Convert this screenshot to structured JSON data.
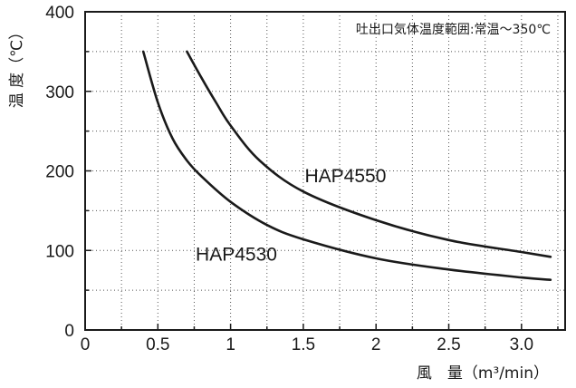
{
  "chart_data": {
    "type": "line",
    "title": "",
    "annotation": "吐出口気体温度範囲:常温～350℃",
    "xlabel": "風　量（m³/min）",
    "ylabel": "温 度（℃）",
    "xlim": [
      0,
      3.3
    ],
    "ylim": [
      0,
      400
    ],
    "x_ticks": [
      0,
      0.5,
      1,
      1.5,
      2,
      2.5,
      3
    ],
    "x_tick_labels": [
      "0",
      "0.5",
      "1",
      "1.5",
      "2",
      "2.5",
      "3.0"
    ],
    "y_ticks": [
      0,
      100,
      200,
      300,
      400
    ],
    "y_tick_labels": [
      "0",
      "100",
      "200",
      "300",
      "400"
    ],
    "grid": true,
    "grid_style": "dotted",
    "series": [
      {
        "name": "HAP4550",
        "x": [
          0.7,
          0.8,
          0.9,
          1.0,
          1.2,
          1.5,
          2.0,
          2.5,
          3.0,
          3.2
        ],
        "y": [
          350,
          317,
          286,
          257,
          213,
          174,
          138,
          113,
          98,
          92
        ]
      },
      {
        "name": "HAP4530",
        "x": [
          0.4,
          0.5,
          0.6,
          0.7,
          0.8,
          1.0,
          1.25,
          1.5,
          2.0,
          2.5,
          3.0,
          3.2
        ],
        "y": [
          350,
          286,
          241,
          213,
          193,
          161,
          132,
          114,
          90,
          76,
          66,
          63
        ]
      }
    ],
    "colors": {
      "curve": "#1a1a1a",
      "grid": "#555555",
      "frame": "#1a1a1a",
      "background": "#ffffff"
    }
  }
}
